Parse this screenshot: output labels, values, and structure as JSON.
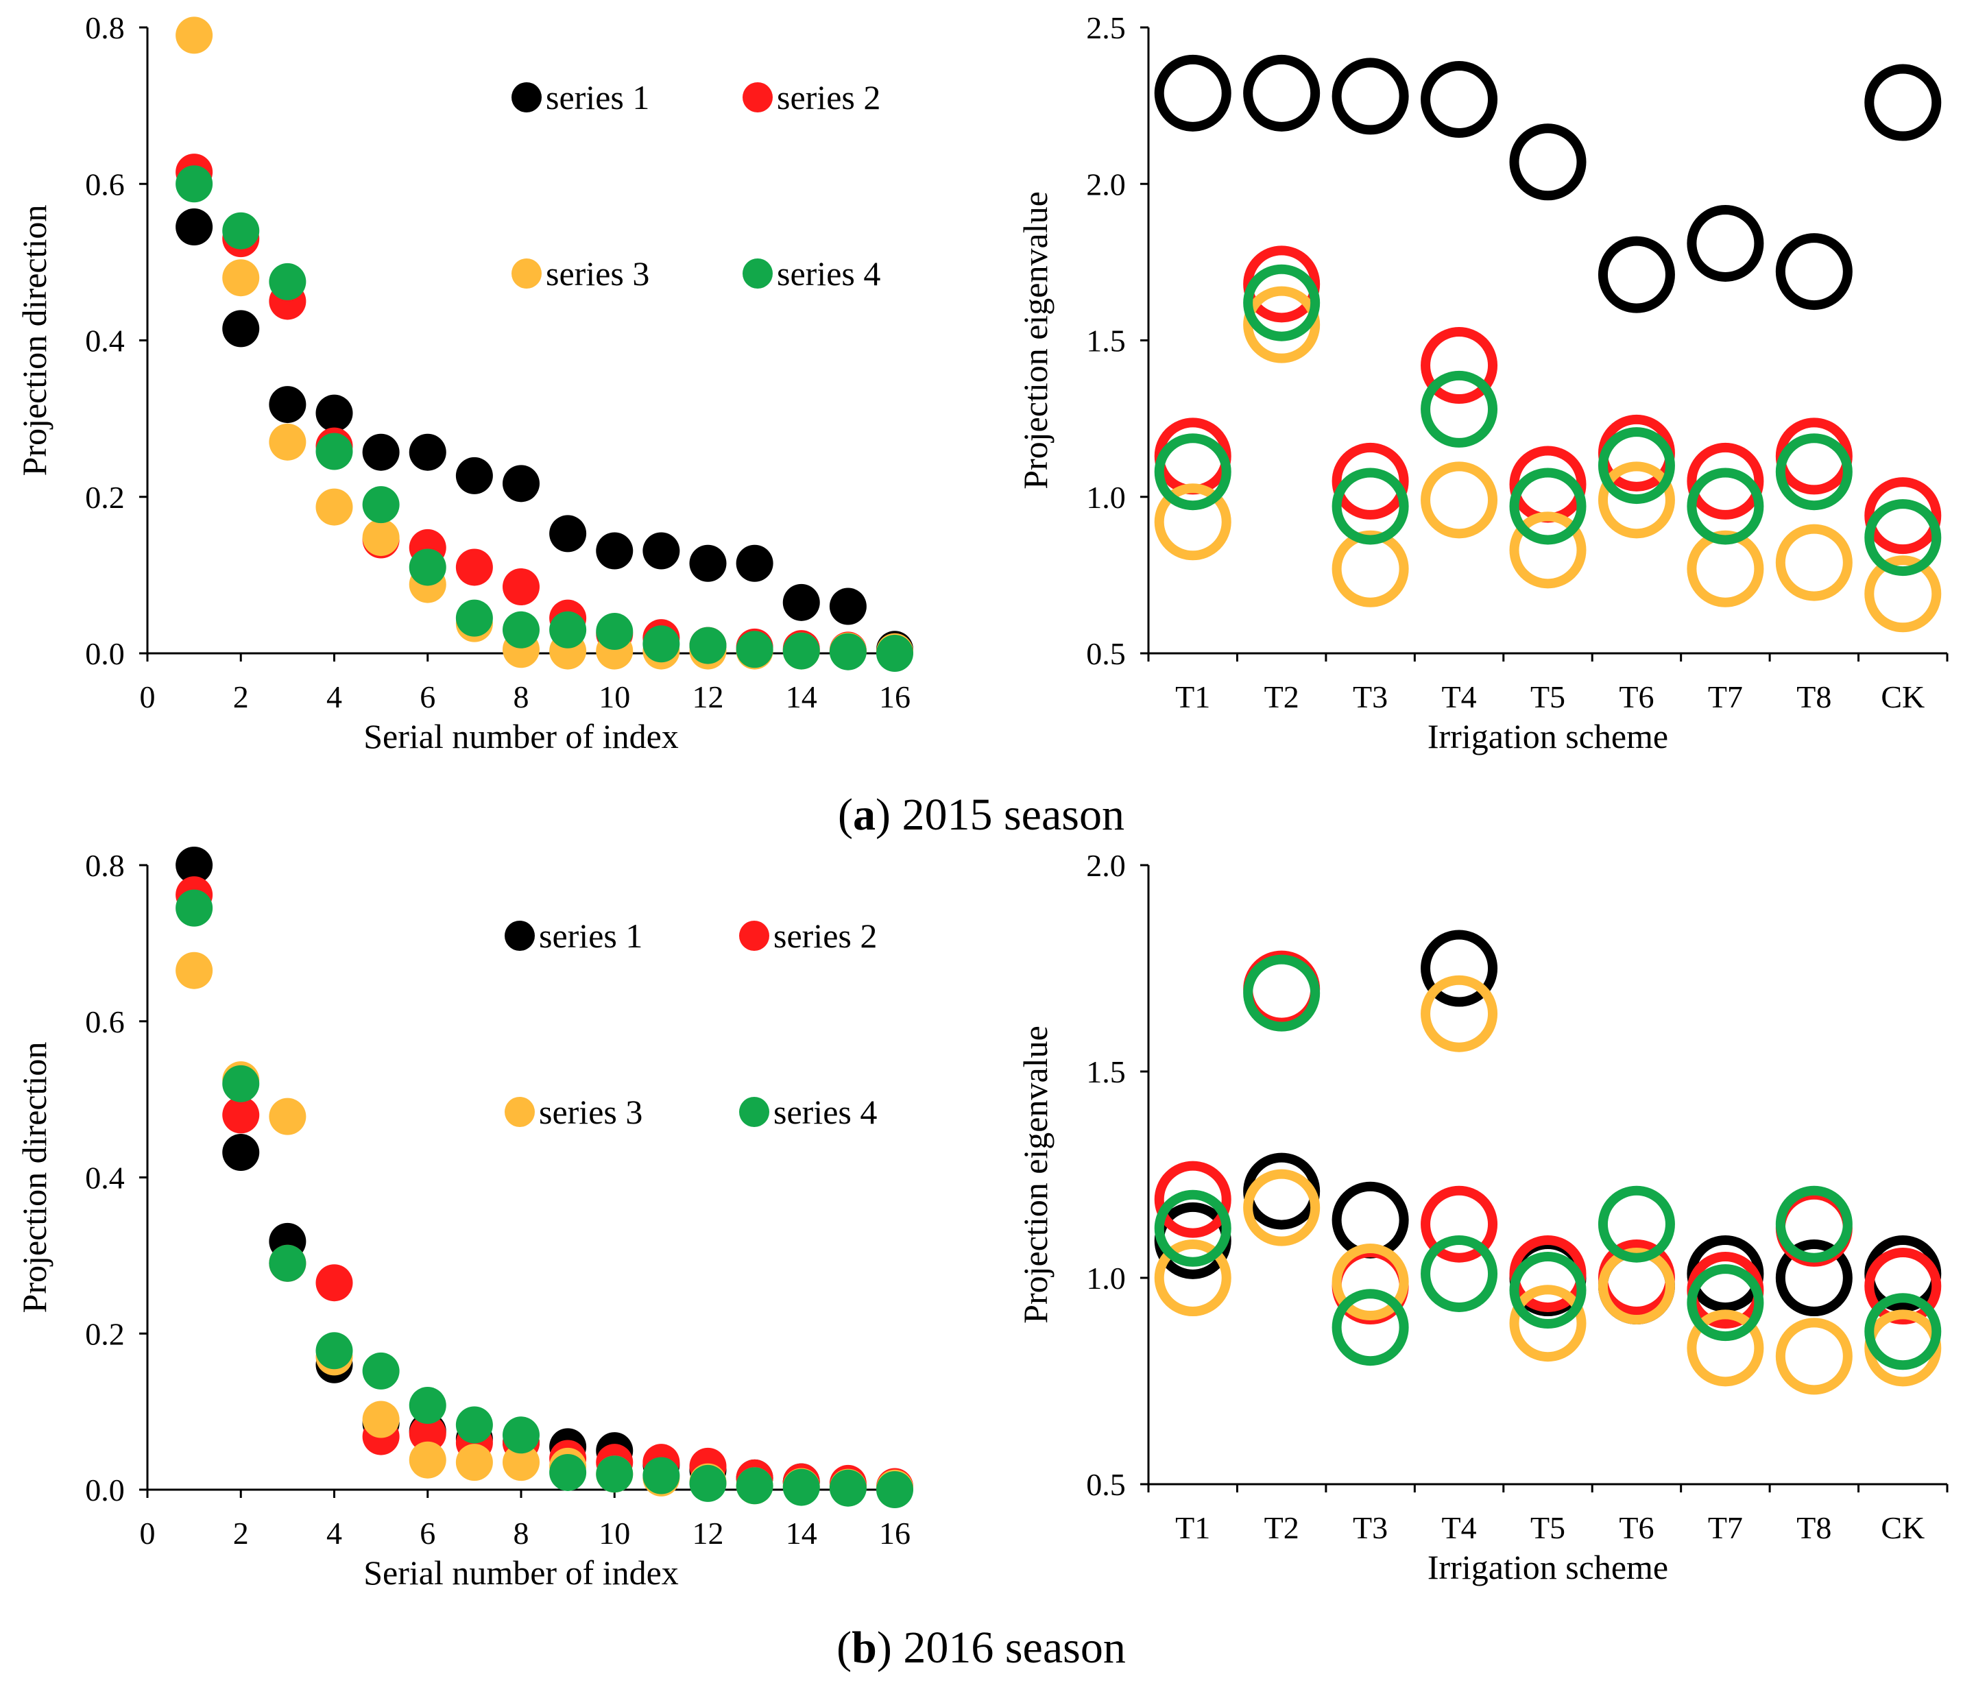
{
  "colors": {
    "series 1": "#000000",
    "series 2": "#ff1a1a",
    "series 3": "#ffba3a",
    "series 4": "#12a84a"
  },
  "captions": [
    {
      "letter": "a",
      "open": "(",
      "close": ")",
      "rest": " 2015 season"
    },
    {
      "letter": "b",
      "open": "(",
      "close": ")",
      "rest": " 2016 season"
    }
  ],
  "chart_data": [
    {
      "type": "scatter",
      "id": "a-left",
      "marker": "filled",
      "xlabel": "Serial number of index",
      "ylabel": "Projection direction",
      "xlim": [
        0,
        16
      ],
      "ylim": [
        0,
        0.8
      ],
      "xticks": [
        0,
        2,
        4,
        6,
        8,
        10,
        12,
        14,
        16
      ],
      "yticks": [
        "0.0",
        "0.2",
        "0.4",
        "0.6",
        "0.8"
      ],
      "legend": [
        "series 1",
        "series 2",
        "series 3",
        "series 4"
      ],
      "x": [
        1,
        2,
        3,
        4,
        5,
        6,
        7,
        8,
        9,
        10,
        11,
        12,
        13,
        14,
        15,
        16
      ],
      "series": [
        {
          "name": "series 1",
          "values": [
            0.545,
            0.415,
            0.318,
            0.307,
            0.257,
            0.257,
            0.227,
            0.217,
            0.153,
            0.131,
            0.131,
            0.115,
            0.115,
            0.065,
            0.06,
            0.005
          ]
        },
        {
          "name": "series 2",
          "values": [
            0.615,
            0.53,
            0.45,
            0.265,
            0.145,
            0.135,
            0.11,
            0.085,
            0.045,
            0.025,
            0.02,
            0.01,
            0.008,
            0.006,
            0.004,
            0.002
          ]
        },
        {
          "name": "series 3",
          "values": [
            0.79,
            0.48,
            0.27,
            0.187,
            0.148,
            0.088,
            0.038,
            0.005,
            0.003,
            0.003,
            0.003,
            0.003,
            0.003,
            0.003,
            0.003,
            0.002
          ]
        },
        {
          "name": "series 4",
          "values": [
            0.6,
            0.54,
            0.475,
            0.258,
            0.19,
            0.11,
            0.045,
            0.03,
            0.03,
            0.028,
            0.012,
            0.01,
            0.005,
            0.003,
            0.002,
            0.0
          ]
        }
      ]
    },
    {
      "type": "scatter",
      "id": "a-right",
      "marker": "ring",
      "xlabel": "Irrigation  scheme",
      "ylabel": "Projection eigenvalue",
      "categories": [
        "T1",
        "T2",
        "T3",
        "T4",
        "T5",
        "T6",
        "T7",
        "T8",
        "CK"
      ],
      "ylim": [
        0.5,
        2.5
      ],
      "yticks": [
        "0.5",
        "1.0",
        "1.5",
        "2.0",
        "2.5"
      ],
      "series": [
        {
          "name": "series 1",
          "values": [
            2.29,
            2.29,
            2.28,
            2.27,
            2.07,
            1.71,
            1.81,
            1.72,
            2.26
          ]
        },
        {
          "name": "series 2",
          "values": [
            1.13,
            1.68,
            1.05,
            1.42,
            1.04,
            1.14,
            1.05,
            1.13,
            0.94
          ]
        },
        {
          "name": "series 3",
          "values": [
            0.92,
            1.55,
            0.77,
            0.99,
            0.83,
            0.99,
            0.77,
            0.79,
            0.69
          ]
        },
        {
          "name": "series 4",
          "values": [
            1.08,
            1.62,
            0.97,
            1.28,
            0.97,
            1.1,
            0.97,
            1.08,
            0.87
          ]
        }
      ]
    },
    {
      "type": "scatter",
      "id": "b-left",
      "marker": "filled",
      "xlabel": "Serial number of index",
      "ylabel": "Projection direction",
      "xlim": [
        0,
        16
      ],
      "ylim": [
        0,
        0.8
      ],
      "xticks": [
        0,
        2,
        4,
        6,
        8,
        10,
        12,
        14,
        16
      ],
      "yticks": [
        "0.0",
        "0.2",
        "0.4",
        "0.6",
        "0.8"
      ],
      "legend": [
        "series 1",
        "series 2",
        "series 3",
        "series 4"
      ],
      "x": [
        1,
        2,
        3,
        4,
        5,
        6,
        7,
        8,
        9,
        10,
        11,
        12,
        13,
        14,
        15,
        16
      ],
      "series": [
        {
          "name": "series 1",
          "values": [
            0.8,
            0.432,
            0.318,
            0.16,
            0.085,
            0.075,
            0.065,
            0.06,
            0.055,
            0.05,
            0.032,
            0.025,
            0.015,
            0.01,
            0.005,
            0.002
          ]
        },
        {
          "name": "series 2",
          "values": [
            0.762,
            0.48,
            0.29,
            0.265,
            0.068,
            0.072,
            0.06,
            0.06,
            0.04,
            0.035,
            0.035,
            0.03,
            0.015,
            0.01,
            0.008,
            0.004
          ]
        },
        {
          "name": "series 3",
          "values": [
            0.665,
            0.525,
            0.478,
            0.17,
            0.09,
            0.038,
            0.035,
            0.035,
            0.03,
            0.02,
            0.015,
            0.01,
            0.005,
            0.004,
            0.003,
            0.002
          ]
        },
        {
          "name": "series 4",
          "values": [
            0.745,
            0.52,
            0.29,
            0.178,
            0.152,
            0.108,
            0.083,
            0.07,
            0.022,
            0.02,
            0.018,
            0.008,
            0.005,
            0.003,
            0.002,
            0.0
          ]
        }
      ]
    },
    {
      "type": "scatter",
      "id": "b-right",
      "marker": "ring",
      "xlabel": "Irrigation  scheme",
      "ylabel": "Projection eigenvalue",
      "categories": [
        "T1",
        "T2",
        "T3",
        "T4",
        "T5",
        "T6",
        "T7",
        "T8",
        "CK"
      ],
      "ylim": [
        0.5,
        2.0
      ],
      "yticks": [
        "0.5",
        "1.0",
        "1.5",
        "2.0"
      ],
      "series": [
        {
          "name": "series 1",
          "values": [
            1.09,
            1.21,
            1.14,
            1.75,
            1.0,
            0.98,
            1.01,
            1.0,
            1.01
          ]
        },
        {
          "name": "series 2",
          "values": [
            1.19,
            1.7,
            0.98,
            1.13,
            1.01,
            1.0,
            0.97,
            1.12,
            0.98
          ]
        },
        {
          "name": "series 3",
          "values": [
            1.0,
            1.17,
            0.99,
            1.64,
            0.89,
            0.98,
            0.83,
            0.81,
            0.83
          ]
        },
        {
          "name": "series 4",
          "values": [
            1.12,
            1.69,
            0.88,
            1.01,
            0.97,
            1.13,
            0.94,
            1.13,
            0.87
          ]
        }
      ]
    }
  ]
}
